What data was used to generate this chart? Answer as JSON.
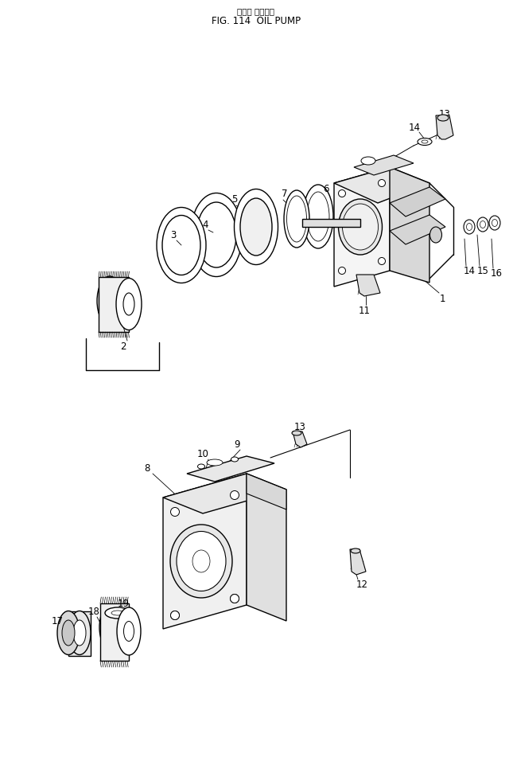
{
  "title_jp": "オイル ホンプ゜",
  "title_en": "FIG. 114  OIL PUMP",
  "bg_color": "#ffffff",
  "line_color": "#000000",
  "title_fontsize": 8,
  "label_fontsize": 8.5,
  "fig_width": 6.45,
  "fig_height": 9.56,
  "dpi": 100
}
